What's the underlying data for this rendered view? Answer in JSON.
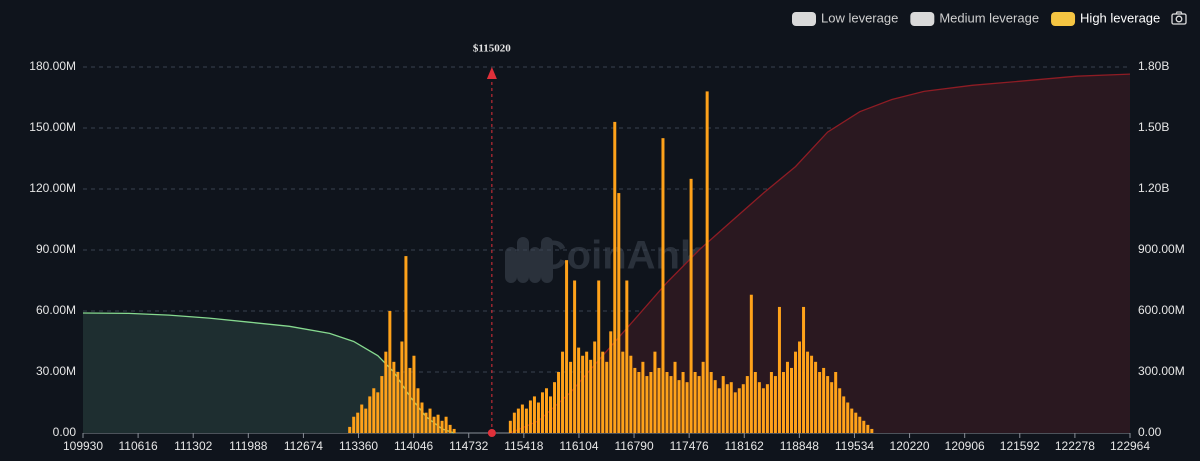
{
  "chart_data": {
    "type": "liquidation-map",
    "watermark": "CoinAnk",
    "annotation": {
      "value": 115020,
      "label": "$115020"
    },
    "legend": [
      {
        "name": "Low leverage",
        "color": "#d9d9d9"
      },
      {
        "name": "Medium leverage",
        "color": "#d9d9d9"
      },
      {
        "name": "High leverage",
        "color": "#f5c542"
      }
    ],
    "xlim": [
      109930,
      122964
    ],
    "xticks": [
      109930,
      110616,
      111302,
      111988,
      112674,
      113360,
      114046,
      114732,
      115418,
      116104,
      116790,
      117476,
      118162,
      118848,
      119534,
      120220,
      120906,
      121592,
      122278,
      122964
    ],
    "ylim": [
      0,
      180
    ],
    "yticks": [
      {
        "value": 0,
        "label": "0.00"
      },
      {
        "value": 30,
        "label": "30.00M"
      },
      {
        "value": 60,
        "label": "60.00M"
      },
      {
        "value": 90,
        "label": "90.00M"
      },
      {
        "value": 120,
        "label": "120.00M"
      },
      {
        "value": 150,
        "label": "150.00M"
      },
      {
        "value": 180,
        "label": "180.00M"
      }
    ],
    "y2lim": [
      0,
      1800
    ],
    "y2ticks": [
      {
        "value": 0,
        "label": "0.00"
      },
      {
        "value": 300,
        "label": "300.00M"
      },
      {
        "value": 600,
        "label": "600.00M"
      },
      {
        "value": 900,
        "label": "900.00M"
      },
      {
        "value": 1200,
        "label": "1.20B"
      },
      {
        "value": 1500,
        "label": "1.50B"
      },
      {
        "value": 1800,
        "label": "1.80B"
      }
    ],
    "grid": true,
    "bars": {
      "color": "#ffa21a",
      "x": [
        113250,
        113300,
        113350,
        113400,
        113450,
        113500,
        113550,
        113600,
        113650,
        113700,
        113750,
        113800,
        113850,
        113900,
        113950,
        114000,
        114050,
        114100,
        114150,
        114200,
        114250,
        114300,
        114350,
        114400,
        114450,
        114500,
        114550,
        115250,
        115300,
        115350,
        115400,
        115450,
        115500,
        115550,
        115600,
        115650,
        115700,
        115750,
        115800,
        115850,
        115900,
        115950,
        116000,
        116050,
        116100,
        116150,
        116200,
        116250,
        116300,
        116350,
        116400,
        116450,
        116500,
        116550,
        116600,
        116650,
        116700,
        116750,
        116800,
        116850,
        116900,
        116950,
        117000,
        117050,
        117100,
        117150,
        117200,
        117250,
        117300,
        117350,
        117400,
        117450,
        117500,
        117550,
        117600,
        117650,
        117700,
        117750,
        117800,
        117850,
        117900,
        117950,
        118000,
        118050,
        118100,
        118150,
        118200,
        118250,
        118300,
        118350,
        118400,
        118450,
        118500,
        118550,
        118600,
        118650,
        118700,
        118750,
        118800,
        118850,
        118900,
        118950,
        119000,
        119050,
        119100,
        119150,
        119200,
        119250,
        119300,
        119350,
        119400,
        119450,
        119500,
        119550,
        119600,
        119650,
        119700,
        119750
      ],
      "values": [
        3,
        8,
        10,
        14,
        12,
        18,
        22,
        20,
        28,
        40,
        60,
        35,
        30,
        45,
        87,
        32,
        38,
        22,
        15,
        10,
        12,
        8,
        9,
        6,
        8,
        4,
        2,
        6,
        10,
        12,
        14,
        12,
        16,
        18,
        15,
        20,
        22,
        18,
        25,
        30,
        40,
        85,
        35,
        75,
        42,
        38,
        40,
        36,
        45,
        75,
        40,
        35,
        50,
        153,
        118,
        40,
        75,
        38,
        32,
        30,
        35,
        28,
        30,
        40,
        32,
        145,
        30,
        28,
        35,
        26,
        30,
        25,
        125,
        30,
        28,
        35,
        168,
        30,
        26,
        22,
        28,
        24,
        25,
        20,
        22,
        24,
        28,
        68,
        30,
        25,
        22,
        24,
        30,
        28,
        62,
        30,
        35,
        32,
        40,
        45,
        62,
        40,
        38,
        35,
        30,
        32,
        28,
        25,
        30,
        22,
        18,
        15,
        12,
        10,
        8,
        6,
        4,
        2
      ]
    },
    "series": [
      {
        "color": "#86d98f",
        "fill": "#1e2e30",
        "axis": "y2",
        "x": [
          109930,
          110500,
          111000,
          111500,
          112000,
          112500,
          113000,
          113300,
          113600,
          113800,
          114000,
          114200,
          114400,
          114550
        ],
        "values": [
          590,
          588,
          580,
          565,
          545,
          525,
          490,
          450,
          380,
          300,
          180,
          80,
          20,
          0
        ]
      },
      {
        "color": "#8e1c24",
        "fill": "#2a1820",
        "axis": "y2",
        "x": [
          115250,
          115600,
          116000,
          116400,
          116800,
          117200,
          117600,
          118000,
          118400,
          118800,
          119200,
          119600,
          120000,
          120400,
          121000,
          121600,
          122300,
          122964
        ],
        "values": [
          0,
          60,
          200,
          380,
          560,
          740,
          900,
          1040,
          1180,
          1310,
          1480,
          1580,
          1640,
          1680,
          1710,
          1730,
          1755,
          1765
        ]
      }
    ]
  }
}
